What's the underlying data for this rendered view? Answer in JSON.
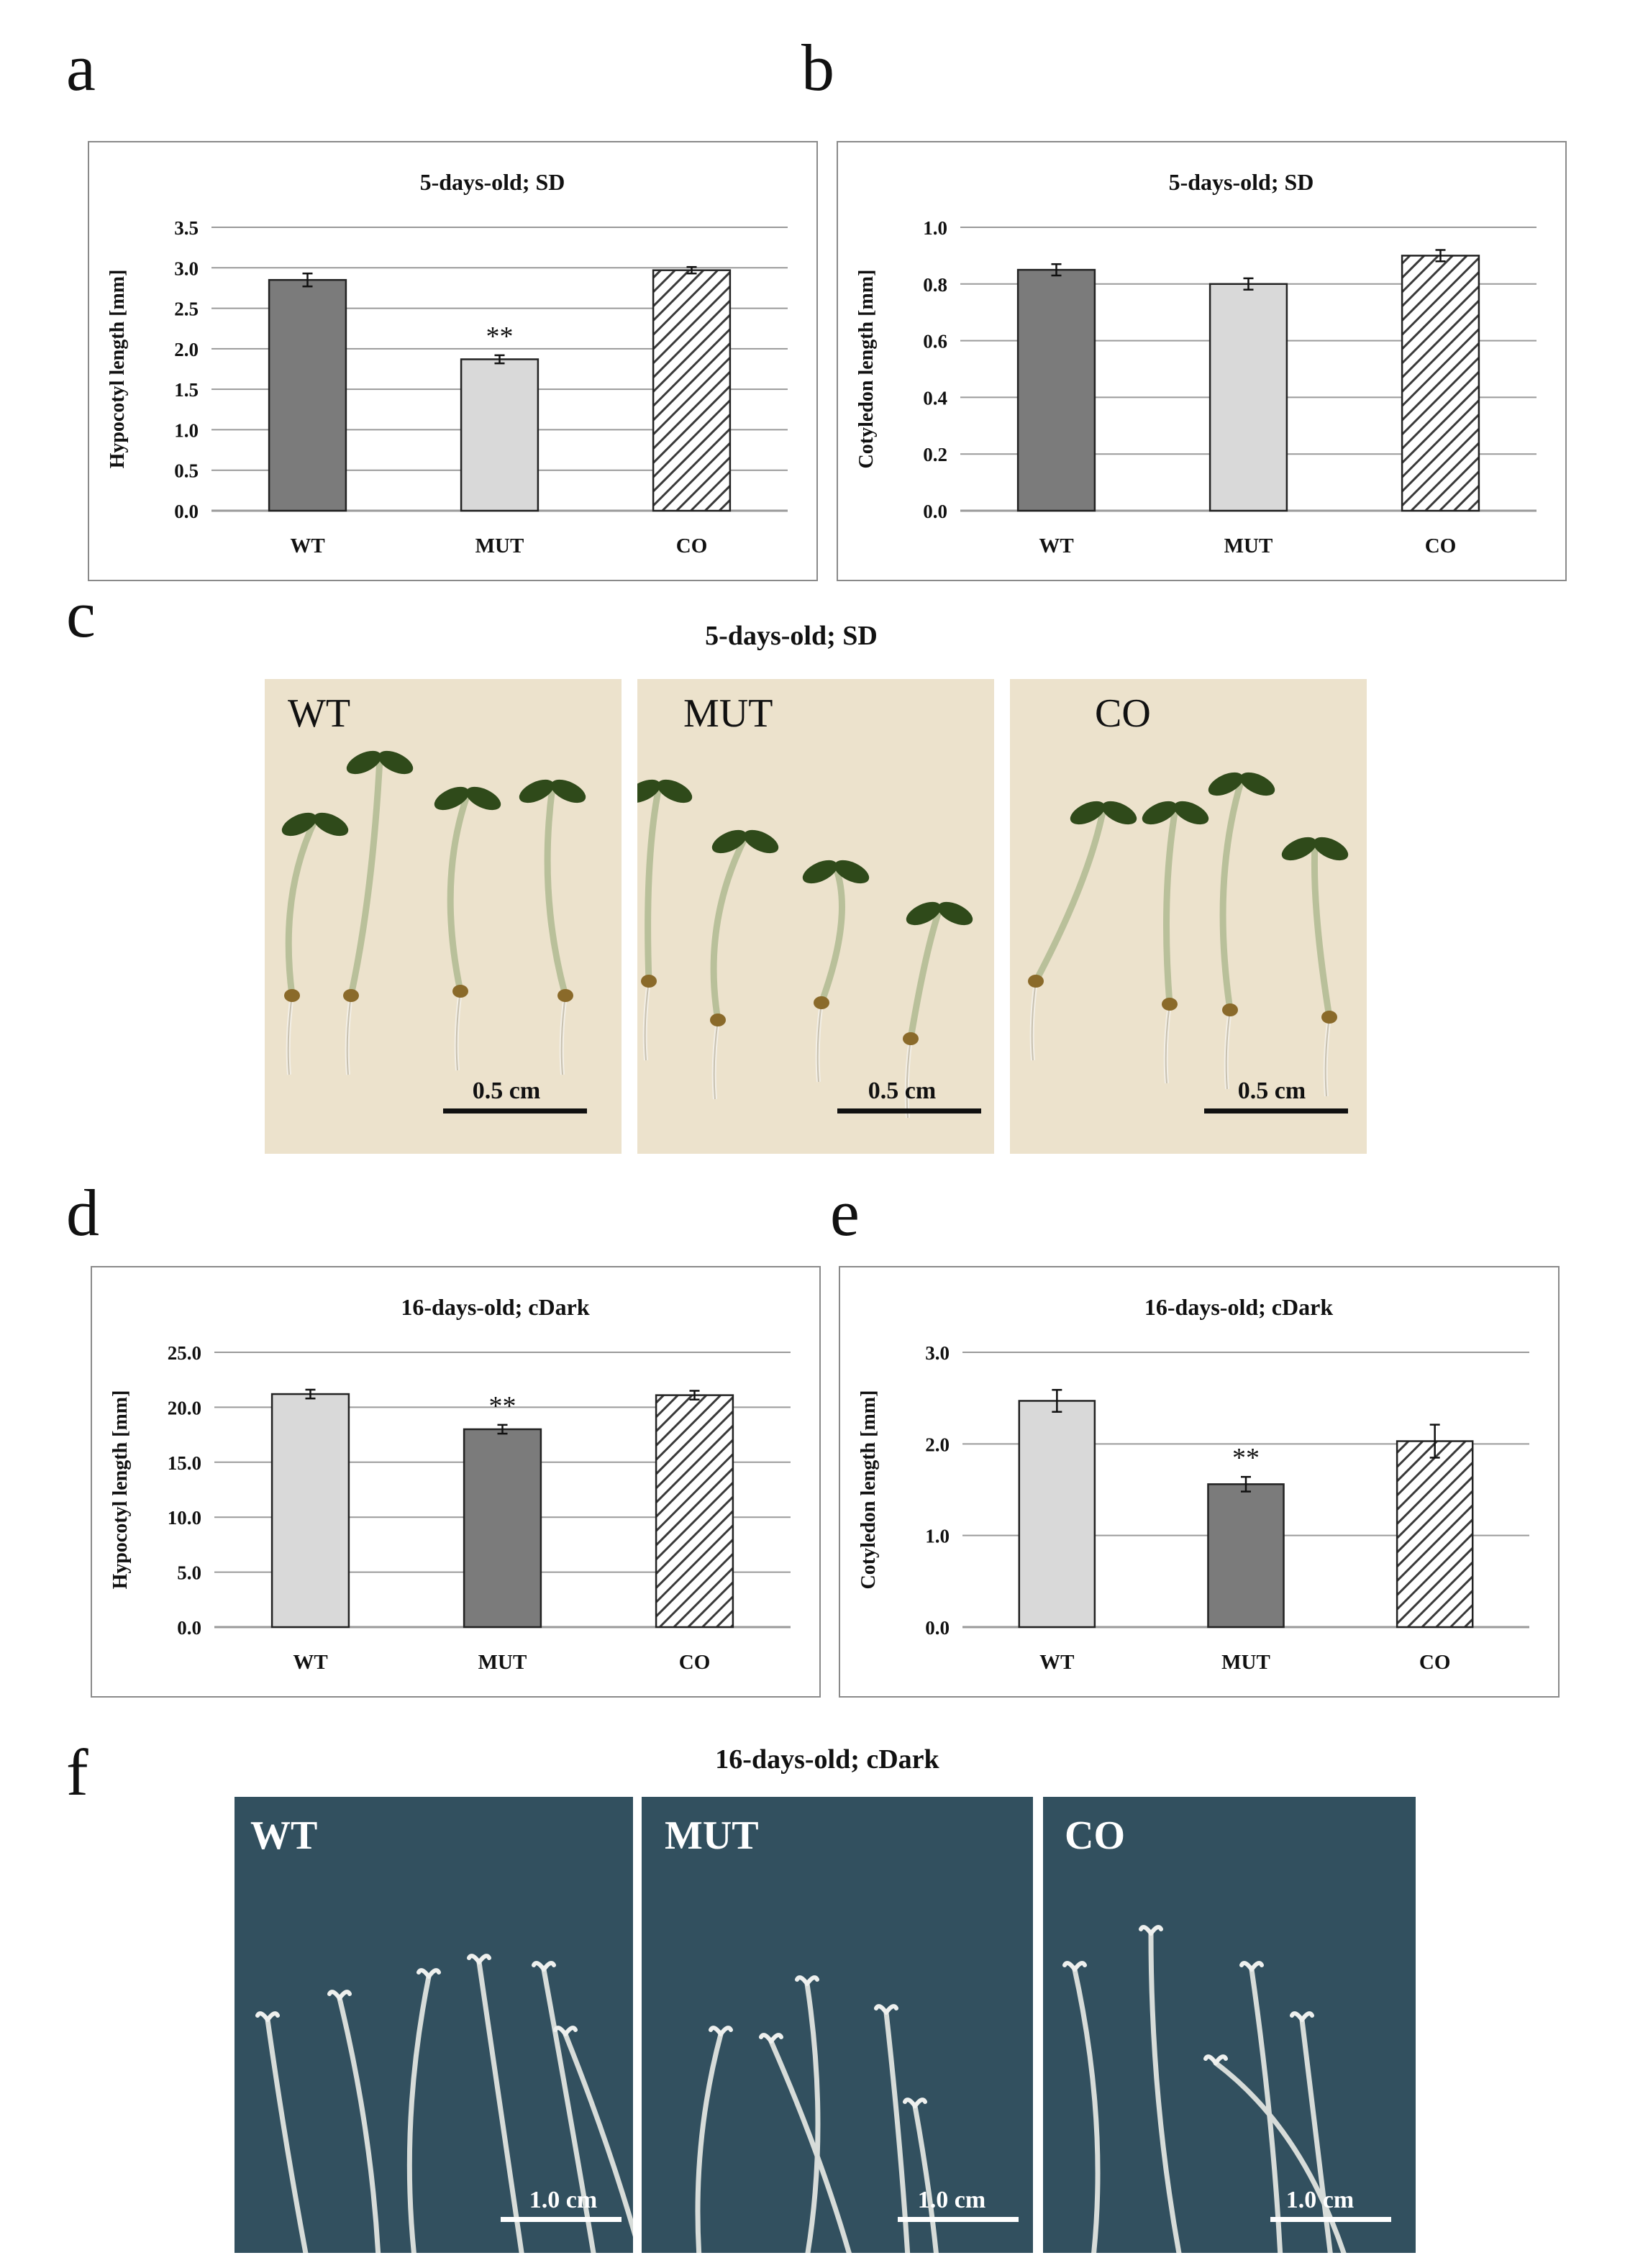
{
  "panels": {
    "a": "a",
    "b": "b",
    "c": "c",
    "d": "d",
    "e": "e",
    "f": "f"
  },
  "chart_data": [
    {
      "id": "a",
      "type": "bar",
      "title": "5-days-old; SD",
      "ylabel": "Hypocotyl length [mm]",
      "xlabel": "",
      "categories": [
        "WT",
        "MUT",
        "CO"
      ],
      "values": [
        2.85,
        1.87,
        2.97
      ],
      "errors": [
        0.08,
        0.05,
        0.04
      ],
      "fills": [
        "dark",
        "light",
        "hatch"
      ],
      "annotations": [
        "",
        "**",
        ""
      ],
      "ylim": [
        0,
        3.5
      ],
      "yticks": [
        0.0,
        0.5,
        1.0,
        1.5,
        2.0,
        2.5,
        3.0,
        3.5
      ],
      "ytick_labels": [
        "0.0",
        "0.5",
        "1.0",
        "1.5",
        "2.0",
        "2.5",
        "3.0",
        "3.5"
      ],
      "grid": true
    },
    {
      "id": "b",
      "type": "bar",
      "title": "5-days-old; SD",
      "ylabel": "Cotyledon length [mm]",
      "xlabel": "",
      "categories": [
        "WT",
        "MUT",
        "CO"
      ],
      "values": [
        0.85,
        0.8,
        0.9
      ],
      "errors": [
        0.02,
        0.02,
        0.02
      ],
      "fills": [
        "dark",
        "light",
        "hatch"
      ],
      "annotations": [
        "",
        "",
        ""
      ],
      "ylim": [
        0,
        1.0
      ],
      "yticks": [
        0.0,
        0.2,
        0.4,
        0.6,
        0.8,
        1.0
      ],
      "ytick_labels": [
        "0.0",
        "0.2",
        "0.4",
        "0.6",
        "0.8",
        "1.0"
      ],
      "grid": true
    },
    {
      "id": "d",
      "type": "bar",
      "title": "16-days-old; cDark",
      "ylabel": "Hypocotyl length [mm]",
      "xlabel": "",
      "categories": [
        "WT",
        "MUT",
        "CO"
      ],
      "values": [
        21.2,
        18.0,
        21.1
      ],
      "errors": [
        0.4,
        0.4,
        0.4
      ],
      "fills": [
        "light",
        "dark",
        "hatch"
      ],
      "annotations": [
        "",
        "**",
        ""
      ],
      "ylim": [
        0,
        25
      ],
      "yticks": [
        0,
        5,
        10,
        15,
        20,
        25
      ],
      "ytick_labels": [
        "0.0",
        "5.0",
        "10.0",
        "15.0",
        "20.0",
        "25.0"
      ],
      "grid": true
    },
    {
      "id": "e",
      "type": "bar",
      "title": "16-days-old; cDark",
      "ylabel": "Cotyledon length [mm]",
      "xlabel": "",
      "categories": [
        "WT",
        "MUT",
        "CO"
      ],
      "values": [
        2.47,
        1.56,
        2.03
      ],
      "errors": [
        0.12,
        0.08,
        0.18
      ],
      "fills": [
        "light",
        "dark",
        "hatch"
      ],
      "annotations": [
        "",
        "**",
        ""
      ],
      "ylim": [
        0,
        3.0
      ],
      "yticks": [
        0.0,
        1.0,
        2.0,
        3.0
      ],
      "ytick_labels": [
        "0.0",
        "1.0",
        "2.0",
        "3.0"
      ],
      "grid": true
    }
  ],
  "photos_c": {
    "title": "5-days-old; SD",
    "labels": [
      "WT",
      "MUT",
      "CO"
    ],
    "scale": "0.5 cm"
  },
  "photos_f": {
    "title": "16-days-old; cDark",
    "labels": [
      "WT",
      "MUT",
      "CO"
    ],
    "scale": "1.0 cm"
  },
  "colors": {
    "dark_bar": "#7b7b7b",
    "light_bar": "#d9d9d9",
    "hatch_stroke": "#3a3a3a",
    "grid": "#9a9a9a",
    "photo_light_bg": "#ece2cc",
    "photo_dark_bg": "#32505f",
    "seedling_green": "#2f4a1a",
    "seedling_stem": "#b9c09a",
    "etiolated": "#d7dcd9"
  }
}
